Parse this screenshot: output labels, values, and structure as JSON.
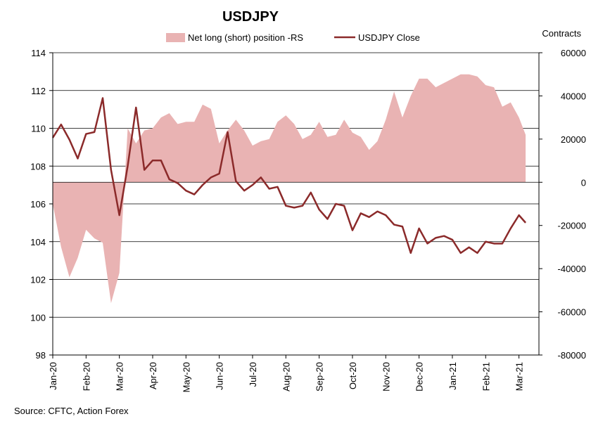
{
  "chart_data": {
    "type": "area+line",
    "title": "USDJPY",
    "left_axis": {
      "label": "",
      "min": 98,
      "max": 114,
      "ticks": [
        98,
        100,
        102,
        104,
        106,
        108,
        110,
        112,
        114
      ]
    },
    "right_axis": {
      "label": "Contracts",
      "min": -80000,
      "max": 60000,
      "ticks": [
        -80000,
        -60000,
        -40000,
        -20000,
        0,
        20000,
        40000,
        60000
      ]
    },
    "x_months": [
      "Jan-20",
      "Feb-20",
      "Mar-20",
      "Apr-20",
      "May-20",
      "Jun-20",
      "Jul-20",
      "Aug-20",
      "Sep-20",
      "Oct-20",
      "Nov-20",
      "Dec-20",
      "Jan-21",
      "Feb-21",
      "Mar-21"
    ],
    "gridlines": "horizontal",
    "legend": {
      "position": "top-center",
      "area_label": "Net long (short) position -RS",
      "line_label": "USDJPY Close"
    },
    "colors": {
      "area": "#e9b3b3",
      "line": "#8b2a2a",
      "grid": "#000000"
    },
    "series": [
      {
        "name": "Net long (short) position -RS",
        "axis": "right",
        "type": "area",
        "x": [
          0.0,
          0.25,
          0.5,
          0.75,
          1.0,
          1.25,
          1.5,
          1.75,
          2.0,
          2.25,
          2.5,
          2.75,
          3.0,
          3.25,
          3.5,
          3.75,
          4.0,
          4.25,
          4.5,
          4.75,
          5.0,
          5.25,
          5.5,
          5.75,
          6.0,
          6.25,
          6.5,
          6.75,
          7.0,
          7.25,
          7.5,
          7.75,
          8.0,
          8.25,
          8.5,
          8.75,
          9.0,
          9.25,
          9.5,
          9.75,
          10.0,
          10.25,
          10.5,
          10.75,
          11.0,
          11.25,
          11.5,
          11.75,
          12.0,
          12.25,
          12.5,
          12.75,
          13.0,
          13.25,
          13.5,
          13.75,
          14.0,
          14.2
        ],
        "values": [
          -10000,
          -30000,
          -44000,
          -35000,
          -22000,
          -26000,
          -28000,
          -56000,
          -42000,
          25000,
          18000,
          24000,
          25000,
          30000,
          32000,
          27000,
          28000,
          28000,
          36000,
          34000,
          18000,
          24000,
          29000,
          24000,
          17000,
          19000,
          20000,
          28000,
          31000,
          27000,
          20000,
          22000,
          28000,
          21000,
          22000,
          29000,
          23000,
          21000,
          15000,
          19000,
          29000,
          42000,
          30000,
          40000,
          48000,
          48000,
          44000,
          46000,
          48000,
          50000,
          50000,
          49000,
          45000,
          44000,
          35000,
          37000,
          30000,
          22000
        ]
      },
      {
        "name": "USDJPY Close",
        "axis": "left",
        "type": "line",
        "x": [
          0.0,
          0.25,
          0.5,
          0.75,
          1.0,
          1.25,
          1.5,
          1.75,
          2.0,
          2.25,
          2.5,
          2.75,
          3.0,
          3.25,
          3.5,
          3.75,
          4.0,
          4.25,
          4.5,
          4.75,
          5.0,
          5.25,
          5.5,
          5.75,
          6.0,
          6.25,
          6.5,
          6.75,
          7.0,
          7.25,
          7.5,
          7.75,
          8.0,
          8.25,
          8.5,
          8.75,
          9.0,
          9.25,
          9.5,
          9.75,
          10.0,
          10.25,
          10.5,
          10.75,
          11.0,
          11.25,
          11.5,
          11.75,
          12.0,
          12.25,
          12.5,
          12.75,
          13.0,
          13.25,
          13.5,
          13.75,
          14.0,
          14.2
        ],
        "values": [
          109.5,
          110.2,
          109.4,
          108.4,
          109.7,
          109.8,
          111.6,
          107.8,
          105.4,
          108.0,
          111.1,
          107.8,
          108.3,
          108.3,
          107.3,
          107.1,
          106.7,
          106.5,
          107.0,
          107.4,
          107.6,
          109.8,
          107.2,
          106.7,
          107.0,
          107.4,
          106.8,
          106.9,
          105.9,
          105.8,
          105.9,
          106.6,
          105.7,
          105.2,
          106.0,
          105.9,
          104.6,
          105.5,
          105.3,
          105.6,
          105.4,
          104.9,
          104.8,
          103.4,
          104.7,
          103.9,
          104.2,
          104.3,
          104.1,
          103.4,
          103.7,
          103.4,
          104.0,
          103.9,
          103.9,
          104.7,
          105.4,
          105.0
        ]
      }
    ]
  },
  "source": "Source: CFTC, Action Forex"
}
